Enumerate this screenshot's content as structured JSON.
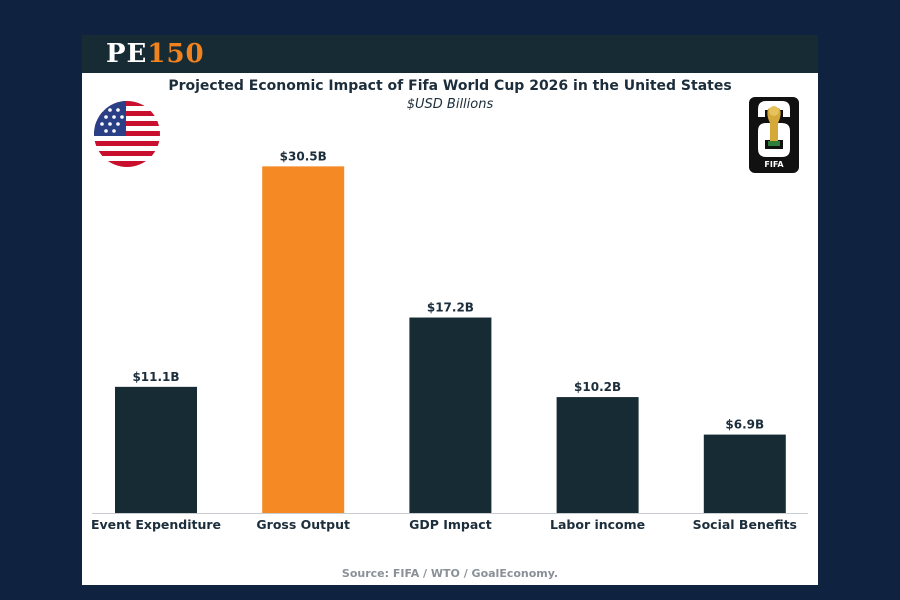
{
  "brand": {
    "part1": "PE",
    "part2": "150"
  },
  "chart_data": {
    "type": "bar",
    "title": "Projected Economic Impact of Fifa World Cup 2026 in the United States",
    "subtitle": "$USD Billions",
    "categories": [
      "Event Expenditure",
      "Gross Output",
      "GDP Impact",
      "Labor income",
      "Social Benefits"
    ],
    "values": [
      11.1,
      30.5,
      17.2,
      10.2,
      6.9
    ],
    "data_labels": [
      "$11.1B",
      "$30.5B",
      "$17.2B",
      "$10.2B",
      "$6.9B"
    ],
    "highlight_index": 1,
    "ylim": [
      0,
      31.5
    ],
    "grid": false,
    "colors": {
      "bar": "#172b35",
      "highlight": "#f58a25"
    }
  },
  "source": "Source: FIFA / WTO / GoalEconomy.",
  "wc_logo": {
    "text": "FIFA"
  },
  "icons": {
    "flag": "us-flag-icon",
    "logo": "world-cup-2026-logo-icon"
  }
}
